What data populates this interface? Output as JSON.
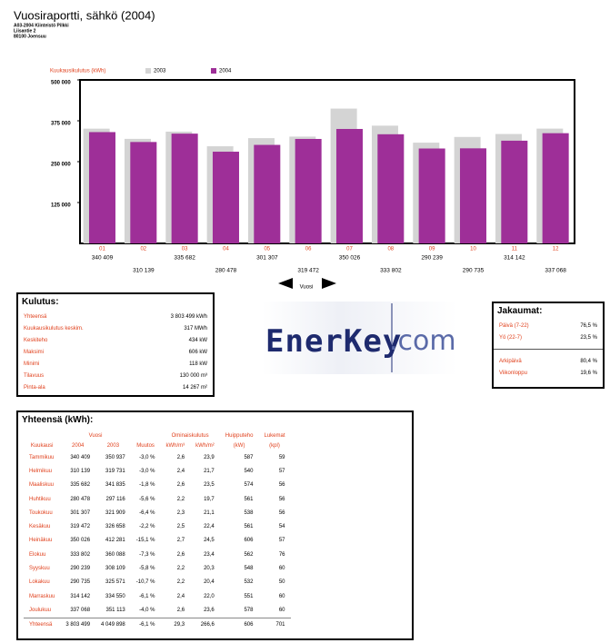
{
  "header": {
    "title": "Vuosiraportti, sähkö (2004)",
    "lines": [
      "A03-2004 Kiinteistö Pilkki",
      "Liisantie 2",
      "80100 Joensuu"
    ]
  },
  "chart_data": {
    "type": "bar",
    "legend_title": "Kuukausikulutus (kWh)",
    "legend": "top-left",
    "grid": false,
    "categories": [
      "01",
      "02",
      "03",
      "04",
      "05",
      "06",
      "07",
      "08",
      "09",
      "10",
      "11",
      "12"
    ],
    "series": [
      {
        "name": "2003",
        "color": "#d4d4d4",
        "values": [
          350937,
          319731,
          341835,
          297116,
          321909,
          326658,
          412281,
          360088,
          308109,
          325571,
          334550,
          351113
        ]
      },
      {
        "name": "2004",
        "color": "#9e2f98",
        "values": [
          340409,
          310139,
          335682,
          280478,
          301307,
          319472,
          350026,
          333802,
          290239,
          290735,
          314142,
          337068
        ],
        "value_labels": [
          "340 409",
          "310 139",
          "335 682",
          "280 478",
          "301 307",
          "319 472",
          "350 026",
          "333 802",
          "290 239",
          "290 735",
          "314 142",
          "337 068"
        ]
      }
    ],
    "ylim": [
      0,
      500000
    ],
    "yticks": [
      {
        "value": 125000,
        "label": "125 000"
      },
      {
        "value": 250000,
        "label": "250 000"
      },
      {
        "value": 375000,
        "label": "375 000"
      },
      {
        "value": 500000,
        "label": "500 000"
      }
    ]
  },
  "nav": {
    "label": "Vuosi"
  },
  "kulutus": {
    "title": "Kulutus:",
    "rows": [
      [
        "Yhteensä",
        "3 803 499 kWh"
      ],
      [
        "Kuukausikulutus keskim.",
        "317 MWh"
      ],
      [
        "Keskiteho",
        "434 kW"
      ],
      [
        "Maksimi",
        "606 kW"
      ],
      [
        "Minimi",
        "118 kW"
      ],
      [
        "Tilavuus",
        "130 000 m³"
      ],
      [
        "Pinta-ala",
        "14 267 m²"
      ]
    ]
  },
  "logo": {
    "name": "EnerKey",
    "domain": ".com"
  },
  "jakaumat": {
    "title": "Jakaumat:",
    "rows": [
      [
        "Päivä (7-22)",
        "76,5 %"
      ],
      [
        "Yö (22-7)",
        "23,5 %"
      ],
      [
        "Arkipäivä",
        "80,4 %"
      ],
      [
        "Viikonloppu",
        "19,6 %"
      ]
    ]
  },
  "table": {
    "title": "Yhteensä (kWh):",
    "groups": [
      "Vuosi",
      "Ominaiskulutus",
      "Huipputeho",
      "Lukemat"
    ],
    "columns": [
      "Kuukausi",
      "2004",
      "2003",
      "Muutos",
      "kWh/m³",
      "kWh/m²",
      "(kW)",
      "(kpl)"
    ],
    "rows": [
      [
        "Tammikuu",
        "340 409",
        "350 937",
        "-3,0 %",
        "2,6",
        "23,9",
        "587",
        "59"
      ],
      [
        "Helmikuu",
        "310 139",
        "319 731",
        "-3,0 %",
        "2,4",
        "21,7",
        "540",
        "57"
      ],
      [
        "Maaliskuu",
        "335 682",
        "341 835",
        "-1,8 %",
        "2,6",
        "23,5",
        "574",
        "56"
      ],
      [
        "Huhtikuu",
        "280 478",
        "297 116",
        "-5,6 %",
        "2,2",
        "19,7",
        "561",
        "56"
      ],
      [
        "Toukokuu",
        "301 307",
        "321 909",
        "-6,4 %",
        "2,3",
        "21,1",
        "538",
        "56"
      ],
      [
        "Kesäkuu",
        "319 472",
        "326 658",
        "-2,2 %",
        "2,5",
        "22,4",
        "561",
        "54"
      ],
      [
        "Heinäkuu",
        "350 026",
        "412 281",
        "-15,1 %",
        "2,7",
        "24,5",
        "606",
        "57"
      ],
      [
        "Elokuu",
        "333 802",
        "360 088",
        "-7,3 %",
        "2,6",
        "23,4",
        "562",
        "76"
      ],
      [
        "Syyskuu",
        "290 239",
        "308 109",
        "-5,8 %",
        "2,2",
        "20,3",
        "548",
        "60"
      ],
      [
        "Lokakuu",
        "290 735",
        "325 571",
        "-10,7 %",
        "2,2",
        "20,4",
        "532",
        "50"
      ],
      [
        "Marraskuu",
        "314 142",
        "334 550",
        "-6,1 %",
        "2,4",
        "22,0",
        "551",
        "60"
      ],
      [
        "Joulukuu",
        "337 068",
        "351 113",
        "-4,0 %",
        "2,6",
        "23,6",
        "578",
        "60"
      ],
      [
        "Yhteensä",
        "3 803 499",
        "4 049 898",
        "-6,1 %",
        "29,3",
        "266,6",
        "606",
        "701"
      ]
    ]
  }
}
